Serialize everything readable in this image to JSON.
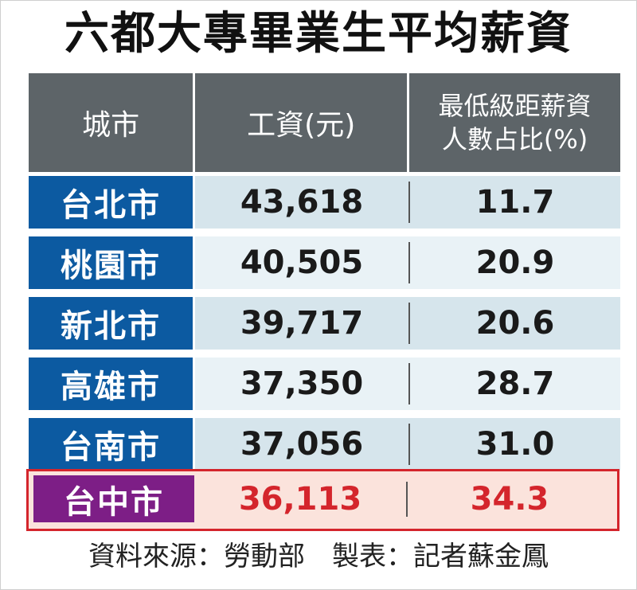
{
  "title": "六都大專畢業生平均薪資",
  "header": {
    "city": "城市",
    "wage": "工資(元)",
    "pct_line1": "最低級距薪資",
    "pct_line2": "人數占比(%)"
  },
  "rows": [
    {
      "city": "台北市",
      "wage": "43,618",
      "pct": "11.7"
    },
    {
      "city": "桃園市",
      "wage": "40,505",
      "pct": "20.9"
    },
    {
      "city": "新北市",
      "wage": "39,717",
      "pct": "20.6"
    },
    {
      "city": "高雄市",
      "wage": "37,350",
      "pct": "28.7"
    },
    {
      "city": "台南市",
      "wage": "37,056",
      "pct": "31.0"
    }
  ],
  "highlight_row": {
    "city": "台中市",
    "wage": "36,113",
    "pct": "34.3"
  },
  "footer": "資料來源：勞動部　製表：記者蘇金鳳",
  "colors": {
    "header_bg": "#5d6468",
    "city_bg": "#0c5aa1",
    "highlight_city_bg": "#7d1e86",
    "highlight_text": "#d4252c",
    "highlight_bg": "#fbe3dc"
  },
  "chart_data": {
    "type": "table",
    "title": "六都大專畢業生平均薪資",
    "columns": [
      "城市",
      "工資(元)",
      "最低級距薪資人數占比(%)"
    ],
    "rows": [
      [
        "台北市",
        43618,
        11.7
      ],
      [
        "桃園市",
        40505,
        20.9
      ],
      [
        "新北市",
        39717,
        20.6
      ],
      [
        "高雄市",
        37350,
        28.7
      ],
      [
        "台南市",
        37056,
        31.0
      ],
      [
        "台中市",
        36113,
        34.3
      ]
    ]
  }
}
